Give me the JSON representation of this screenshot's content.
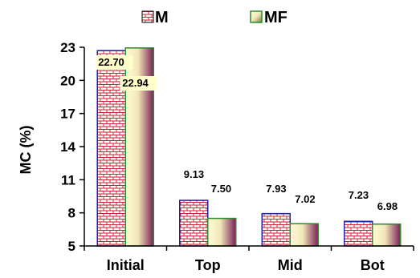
{
  "chart_data": {
    "type": "bar",
    "categories": [
      "Initial",
      "Top",
      "Mid",
      "Bot"
    ],
    "series": [
      {
        "name": "M",
        "values": [
          22.7,
          9.13,
          7.93,
          7.23
        ],
        "color": "#cc2233",
        "fill": "brick-pattern"
      },
      {
        "name": "MF",
        "values": [
          22.94,
          7.5,
          7.02,
          6.98
        ],
        "color": "#2e8b2e",
        "fill": "yellow-purple-gradient"
      }
    ],
    "data_labels": {
      "M": [
        "22.70",
        "9.13",
        "7.93",
        "7.23"
      ],
      "MF": [
        "22.94",
        "7.50",
        "7.02",
        "6.98"
      ]
    },
    "title": "",
    "xlabel": "",
    "ylabel": "MC (%)",
    "ylim": [
      5,
      23
    ],
    "yticks": [
      5,
      8,
      11,
      14,
      17,
      20,
      23
    ],
    "grid": false,
    "legend_position": "top-center"
  }
}
